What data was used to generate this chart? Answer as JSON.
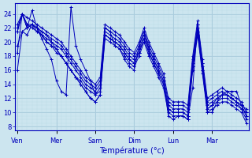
{
  "xlabel": "Température (°c)",
  "background_color": "#cce5ef",
  "line_color": "#0000bb",
  "grid_major_color": "#aaccdd",
  "grid_minor_color": "#bbdde8",
  "ylim": [
    7.5,
    25.5
  ],
  "yticks": [
    8,
    10,
    12,
    14,
    16,
    18,
    20,
    22,
    24
  ],
  "day_labels": [
    "Ven",
    "Mer",
    "Sam",
    "Dim",
    "Lun",
    "Mar"
  ],
  "day_positions": [
    0,
    8,
    16,
    24,
    32,
    40
  ],
  "total_points": 48,
  "series": [
    [
      18.5,
      24.0,
      22.0,
      24.5,
      22.0,
      20.5,
      19.0,
      17.5,
      14.5,
      13.0,
      12.5,
      25.0,
      19.5,
      17.5,
      16.0,
      14.5,
      12.5,
      13.0,
      22.0,
      21.5,
      19.5,
      19.0,
      17.5,
      16.5,
      16.0,
      19.5,
      21.5,
      19.0,
      17.5,
      16.0,
      14.5,
      9.5,
      9.0,
      9.5,
      9.5,
      9.0,
      13.5,
      22.5,
      17.0,
      10.0,
      10.0,
      11.5,
      12.5,
      13.0,
      13.0,
      13.0,
      11.0,
      10.5
    ],
    [
      21.5,
      24.0,
      22.0,
      22.5,
      22.0,
      21.5,
      21.0,
      20.0,
      19.0,
      18.0,
      17.0,
      16.0,
      15.0,
      14.5,
      13.5,
      13.0,
      12.5,
      13.5,
      21.0,
      20.5,
      20.0,
      19.5,
      18.5,
      17.5,
      17.0,
      18.5,
      20.5,
      18.5,
      17.0,
      15.5,
      14.0,
      10.5,
      10.0,
      10.0,
      10.0,
      9.5,
      16.5,
      21.5,
      16.0,
      10.5,
      11.0,
      12.0,
      12.5,
      12.5,
      12.0,
      11.5,
      10.5,
      10.0
    ],
    [
      21.5,
      24.0,
      22.5,
      22.0,
      21.5,
      21.0,
      20.5,
      20.0,
      19.5,
      19.0,
      18.0,
      17.0,
      16.0,
      15.0,
      14.0,
      13.5,
      13.0,
      14.0,
      21.5,
      21.0,
      20.5,
      20.0,
      19.0,
      18.0,
      17.5,
      19.0,
      21.0,
      19.0,
      17.5,
      16.0,
      14.5,
      11.0,
      10.5,
      10.5,
      10.5,
      10.0,
      17.0,
      22.0,
      16.5,
      11.0,
      11.5,
      12.0,
      12.5,
      12.5,
      12.0,
      11.5,
      11.0,
      9.5
    ],
    [
      22.0,
      24.0,
      22.5,
      22.5,
      22.0,
      21.5,
      21.0,
      20.5,
      20.0,
      19.5,
      18.5,
      17.5,
      16.5,
      15.5,
      14.5,
      14.0,
      13.5,
      14.5,
      22.0,
      21.5,
      21.0,
      20.5,
      19.5,
      18.5,
      18.0,
      19.5,
      21.5,
      19.5,
      18.0,
      16.5,
      15.0,
      11.5,
      11.0,
      11.0,
      11.0,
      10.5,
      17.5,
      22.5,
      17.0,
      11.5,
      12.0,
      12.5,
      13.0,
      12.5,
      12.0,
      11.5,
      11.0,
      9.5
    ],
    [
      22.5,
      24.0,
      23.5,
      23.0,
      22.5,
      22.0,
      21.5,
      21.0,
      20.5,
      20.0,
      19.0,
      18.0,
      17.0,
      16.0,
      15.0,
      14.5,
      14.0,
      15.0,
      22.5,
      22.0,
      21.5,
      21.0,
      20.0,
      19.0,
      18.5,
      20.0,
      22.0,
      20.0,
      18.5,
      17.0,
      15.5,
      12.0,
      11.5,
      11.5,
      11.5,
      11.0,
      18.0,
      23.0,
      17.5,
      12.0,
      12.5,
      13.0,
      13.5,
      13.0,
      12.5,
      12.0,
      11.5,
      10.0
    ],
    [
      19.5,
      21.5,
      21.0,
      22.5,
      22.0,
      21.0,
      20.0,
      19.5,
      19.0,
      18.0,
      17.0,
      16.0,
      15.0,
      14.0,
      13.0,
      12.0,
      11.5,
      12.5,
      20.5,
      20.0,
      19.5,
      19.0,
      18.0,
      17.0,
      16.5,
      18.0,
      20.0,
      18.0,
      16.5,
      15.0,
      13.5,
      10.0,
      9.5,
      9.5,
      9.5,
      9.0,
      16.0,
      21.0,
      15.5,
      10.0,
      10.5,
      11.0,
      11.5,
      11.5,
      11.0,
      10.5,
      10.0,
      8.5
    ],
    [
      16.0,
      21.5,
      22.0,
      22.5,
      21.5,
      21.0,
      20.0,
      19.5,
      18.5,
      18.0,
      17.0,
      16.0,
      15.0,
      14.0,
      13.0,
      12.0,
      11.5,
      12.5,
      21.0,
      20.5,
      20.0,
      19.5,
      18.5,
      17.5,
      17.0,
      18.5,
      20.5,
      18.5,
      17.0,
      15.5,
      14.0,
      10.5,
      10.0,
      10.0,
      10.0,
      9.5,
      16.5,
      21.5,
      16.0,
      10.5,
      11.0,
      11.5,
      12.0,
      12.0,
      11.5,
      11.0,
      10.5,
      9.0
    ]
  ]
}
